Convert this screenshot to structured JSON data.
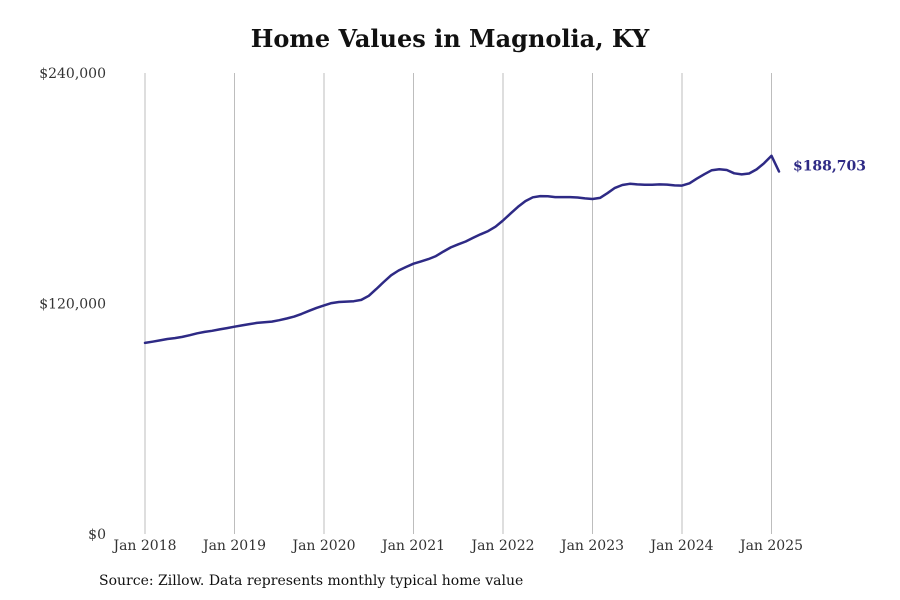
{
  "title": "Home Values in Magnolia, KY",
  "source": "Source: Zillow. Data represents monthly typical home value",
  "colors": {
    "line": "#2e2a85",
    "grid": "#bdbdbd",
    "text": "#333333"
  },
  "chart_data": {
    "type": "line",
    "title": "Home Values in Magnolia, KY",
    "xlabel": "",
    "ylabel": "",
    "grid": {
      "x": true,
      "y": false
    },
    "xlim": [
      "2018-01",
      "2025-02"
    ],
    "ylim": [
      0,
      240000
    ],
    "y_ticks": [
      {
        "value": 0,
        "label": "$0"
      },
      {
        "value": 120000,
        "label": "$120,000"
      },
      {
        "value": 240000,
        "label": "$240,000"
      }
    ],
    "x_ticks": [
      {
        "value": "2018-01",
        "label": "Jan 2018"
      },
      {
        "value": "2019-01",
        "label": "Jan 2019"
      },
      {
        "value": "2020-01",
        "label": "Jan 2020"
      },
      {
        "value": "2021-01",
        "label": "Jan 2021"
      },
      {
        "value": "2022-01",
        "label": "Jan 2022"
      },
      {
        "value": "2023-01",
        "label": "Jan 2023"
      },
      {
        "value": "2024-01",
        "label": "Jan 2024"
      },
      {
        "value": "2025-01",
        "label": "Jan 2025"
      }
    ],
    "end_label": "$188,703",
    "series": [
      {
        "x": [
          "2018-01",
          "2018-02",
          "2018-03",
          "2018-04",
          "2018-05",
          "2018-06",
          "2018-07",
          "2018-08",
          "2018-09",
          "2018-10",
          "2018-11",
          "2018-12",
          "2019-01",
          "2019-02",
          "2019-03",
          "2019-04",
          "2019-05",
          "2019-06",
          "2019-07",
          "2019-08",
          "2019-09",
          "2019-10",
          "2019-11",
          "2019-12",
          "2020-01",
          "2020-02",
          "2020-03",
          "2020-04",
          "2020-05",
          "2020-06",
          "2020-07",
          "2020-08",
          "2020-09",
          "2020-10",
          "2020-11",
          "2020-12",
          "2021-01",
          "2021-02",
          "2021-03",
          "2021-04",
          "2021-05",
          "2021-06",
          "2021-07",
          "2021-08",
          "2021-09",
          "2021-10",
          "2021-11",
          "2021-12",
          "2022-01",
          "2022-02",
          "2022-03",
          "2022-04",
          "2022-05",
          "2022-06",
          "2022-07",
          "2022-08",
          "2022-09",
          "2022-10",
          "2022-11",
          "2022-12",
          "2023-01",
          "2023-02",
          "2023-03",
          "2023-04",
          "2023-05",
          "2023-06",
          "2023-07",
          "2023-08",
          "2023-09",
          "2023-10",
          "2023-11",
          "2023-12",
          "2024-01",
          "2024-02",
          "2024-03",
          "2024-04",
          "2024-05",
          "2024-06",
          "2024-07",
          "2024-08",
          "2024-09",
          "2024-10",
          "2024-11",
          "2024-12",
          "2025-01",
          "2025-02"
        ],
        "values": [
          99500,
          100100,
          100800,
          101500,
          102000,
          102600,
          103500,
          104500,
          105200,
          105800,
          106500,
          107200,
          107900,
          108600,
          109300,
          109900,
          110200,
          110600,
          111300,
          112200,
          113200,
          114600,
          116200,
          117700,
          119000,
          120200,
          120800,
          121000,
          121200,
          121900,
          124000,
          127500,
          131200,
          134700,
          137200,
          139000,
          140700,
          141900,
          143100,
          144700,
          147000,
          149200,
          150800,
          152300,
          154200,
          156000,
          157700,
          160000,
          163200,
          166800,
          170300,
          173300,
          175300,
          175900,
          175800,
          175400,
          175400,
          175400,
          175200,
          174700,
          174400,
          175000,
          177400,
          180200,
          181700,
          182300,
          182000,
          181800,
          181800,
          182000,
          181900,
          181500,
          181400,
          182600,
          185000,
          187300,
          189400,
          189900,
          189500,
          187800,
          187200,
          187700,
          189800,
          193000,
          196900,
          188703
        ]
      }
    ]
  }
}
